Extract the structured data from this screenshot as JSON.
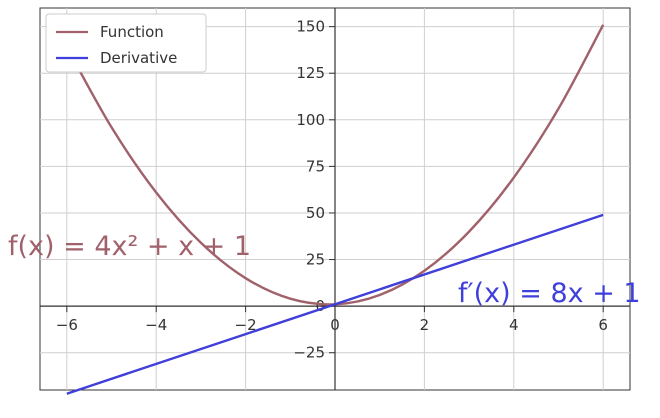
{
  "chart_data": {
    "type": "line",
    "title": "",
    "xlabel": "",
    "ylabel": "",
    "xlim": [
      -6.6,
      6.6
    ],
    "ylim": [
      -45,
      160
    ],
    "xticks": [
      -6,
      -4,
      -2,
      0,
      2,
      4,
      6
    ],
    "xtick_labels": [
      "−6",
      "−4",
      "−2",
      "0",
      "2",
      "4",
      "6"
    ],
    "yticks": [
      -25,
      0,
      25,
      50,
      75,
      100,
      125,
      150
    ],
    "ytick_labels": [
      "−25",
      "0",
      "25",
      "50",
      "75",
      "100",
      "125",
      "150"
    ],
    "grid": true,
    "legend_position": "top-left",
    "series": [
      {
        "name": "Function",
        "color": "#a0616a",
        "x": [
          -6,
          -5,
          -4,
          -3,
          -2,
          -1,
          0,
          1,
          2,
          3,
          4,
          5,
          6
        ],
        "y": [
          139,
          96,
          61,
          34,
          15,
          4,
          1,
          6,
          19,
          40,
          69,
          106,
          151
        ]
      },
      {
        "name": "Derivative",
        "color": "#3f3fdb",
        "x": [
          -6,
          6
        ],
        "y": [
          -47,
          49
        ]
      }
    ],
    "annotations": [
      {
        "text": "f(x) = 4x² + x + 1",
        "color": "#a0616a"
      },
      {
        "text": "f′(x) = 8x + 1",
        "color": "#3f3fdb"
      }
    ]
  }
}
